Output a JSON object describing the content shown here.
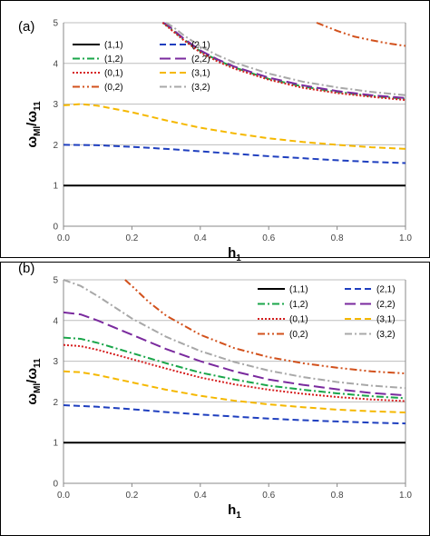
{
  "chart_data": [
    {
      "type": "line",
      "panel_label": "(a)",
      "xlabel": "h",
      "xlabel_sub": "1",
      "ylabel": "ω",
      "ylabel_sub1": "Ml",
      "ylabel_mid": "/ω",
      "ylabel_sub2": "11",
      "xlim": [
        0,
        1
      ],
      "ylim": [
        0,
        5
      ],
      "xticks": [
        "0.0",
        "0.2",
        "0.4",
        "0.6",
        "0.8",
        "1.0"
      ],
      "yticks": [
        "0",
        "1",
        "2",
        "3",
        "4",
        "5"
      ],
      "grid": true,
      "legend_position": "top-left",
      "series": [
        {
          "name": "(1,1)",
          "color": "#000000",
          "dash": "solid",
          "x": [
            0,
            0.2,
            0.4,
            0.6,
            0.8,
            1.0
          ],
          "y": [
            1.0,
            1.0,
            1.0,
            1.0,
            1.0,
            1.0
          ]
        },
        {
          "name": "(2,1)",
          "color": "#1f3fbf",
          "dash": "dash",
          "x": [
            0,
            0.1,
            0.2,
            0.3,
            0.4,
            0.5,
            0.6,
            0.7,
            0.8,
            0.9,
            1.0
          ],
          "y": [
            2.0,
            1.99,
            1.95,
            1.9,
            1.84,
            1.78,
            1.72,
            1.67,
            1.62,
            1.58,
            1.55
          ]
        },
        {
          "name": "(1,2)",
          "color": "#1aa64a",
          "dash": "dashdot",
          "x": [
            0.29,
            0.3,
            0.35,
            0.4,
            0.45,
            0.5,
            0.6,
            0.7,
            0.8,
            0.9,
            1.0
          ],
          "y": [
            5.0,
            4.95,
            4.6,
            4.3,
            4.08,
            3.9,
            3.62,
            3.43,
            3.3,
            3.2,
            3.13
          ]
        },
        {
          "name": "(2,2)",
          "color": "#7a2a9e",
          "dash": "longdash",
          "x": [
            0.29,
            0.3,
            0.35,
            0.4,
            0.45,
            0.5,
            0.6,
            0.7,
            0.8,
            0.9,
            1.0
          ],
          "y": [
            5.0,
            4.97,
            4.62,
            4.32,
            4.1,
            3.92,
            3.65,
            3.46,
            3.32,
            3.22,
            3.15
          ]
        },
        {
          "name": "(0,1)",
          "color": "#d62020",
          "dash": "dot",
          "x": [
            0.29,
            0.3,
            0.35,
            0.4,
            0.45,
            0.5,
            0.6,
            0.7,
            0.8,
            0.9,
            1.0
          ],
          "y": [
            5.0,
            4.93,
            4.58,
            4.27,
            4.05,
            3.87,
            3.6,
            3.4,
            3.27,
            3.18,
            3.1
          ]
        },
        {
          "name": "(3,1)",
          "color": "#f5b800",
          "dash": "dash",
          "x": [
            0,
            0.05,
            0.1,
            0.2,
            0.3,
            0.4,
            0.5,
            0.6,
            0.7,
            0.8,
            0.9,
            1.0
          ],
          "y": [
            2.97,
            3.0,
            2.96,
            2.8,
            2.6,
            2.42,
            2.28,
            2.16,
            2.07,
            2.0,
            1.94,
            1.9
          ]
        },
        {
          "name": "(0,2)",
          "color": "#d2511c",
          "dash": "dashdotdot",
          "x": [
            0.74,
            0.8,
            0.85,
            0.9,
            0.95,
            1.0
          ],
          "y": [
            5.0,
            4.8,
            4.66,
            4.57,
            4.49,
            4.43
          ]
        },
        {
          "name": "(3,2)",
          "color": "#a8a8a8",
          "dash": "dashdot",
          "x": [
            0.3,
            0.32,
            0.35,
            0.4,
            0.45,
            0.5,
            0.6,
            0.7,
            0.8,
            0.9,
            1.0
          ],
          "y": [
            5.0,
            4.9,
            4.7,
            4.42,
            4.2,
            4.02,
            3.75,
            3.55,
            3.41,
            3.3,
            3.22
          ]
        }
      ]
    },
    {
      "type": "line",
      "panel_label": "(b)",
      "xlabel": "h",
      "xlabel_sub": "1",
      "ylabel": "ω",
      "ylabel_sub1": "Ml",
      "ylabel_mid": "/ω",
      "ylabel_sub2": "11",
      "xlim": [
        0,
        1
      ],
      "ylim": [
        0,
        5
      ],
      "xticks": [
        "0.0",
        "0.2",
        "0.4",
        "0.6",
        "0.8",
        "1.0"
      ],
      "yticks": [
        "0",
        "1",
        "2",
        "3",
        "4",
        "5"
      ],
      "grid": true,
      "legend_position": "top-right",
      "series": [
        {
          "name": "(1,1)",
          "color": "#000000",
          "dash": "solid",
          "x": [
            0,
            0.2,
            0.4,
            0.6,
            0.8,
            1.0
          ],
          "y": [
            1.0,
            1.0,
            1.0,
            1.0,
            1.0,
            1.0
          ]
        },
        {
          "name": "(2,1)",
          "color": "#1f3fbf",
          "dash": "dash",
          "x": [
            0,
            0.1,
            0.2,
            0.3,
            0.4,
            0.5,
            0.6,
            0.7,
            0.8,
            0.9,
            1.0
          ],
          "y": [
            1.92,
            1.88,
            1.82,
            1.75,
            1.69,
            1.64,
            1.59,
            1.55,
            1.52,
            1.49,
            1.47
          ]
        },
        {
          "name": "(1,2)",
          "color": "#1aa64a",
          "dash": "dashdot",
          "x": [
            0,
            0.05,
            0.1,
            0.2,
            0.3,
            0.4,
            0.5,
            0.6,
            0.7,
            0.8,
            0.9,
            1.0
          ],
          "y": [
            3.58,
            3.55,
            3.45,
            3.2,
            2.95,
            2.72,
            2.55,
            2.4,
            2.3,
            2.21,
            2.14,
            2.09
          ]
        },
        {
          "name": "(2,2)",
          "color": "#7a2a9e",
          "dash": "longdash",
          "x": [
            0,
            0.05,
            0.1,
            0.2,
            0.3,
            0.4,
            0.5,
            0.6,
            0.7,
            0.8,
            0.9,
            1.0
          ],
          "y": [
            4.2,
            4.15,
            4.0,
            3.65,
            3.3,
            3.0,
            2.75,
            2.55,
            2.42,
            2.31,
            2.22,
            2.16
          ]
        },
        {
          "name": "(0,1)",
          "color": "#d62020",
          "dash": "dot",
          "x": [
            0,
            0.05,
            0.1,
            0.2,
            0.3,
            0.4,
            0.5,
            0.6,
            0.7,
            0.8,
            0.9,
            1.0
          ],
          "y": [
            3.4,
            3.37,
            3.28,
            3.05,
            2.82,
            2.6,
            2.43,
            2.3,
            2.2,
            2.12,
            2.06,
            2.02
          ]
        },
        {
          "name": "(3,1)",
          "color": "#f5b800",
          "dash": "dash",
          "x": [
            0,
            0.05,
            0.1,
            0.2,
            0.3,
            0.4,
            0.5,
            0.6,
            0.7,
            0.8,
            0.9,
            1.0
          ],
          "y": [
            2.75,
            2.73,
            2.66,
            2.48,
            2.3,
            2.15,
            2.03,
            1.94,
            1.87,
            1.81,
            1.77,
            1.74
          ]
        },
        {
          "name": "(0,2)",
          "color": "#d2511c",
          "dash": "dashdotdot",
          "x": [
            0.18,
            0.2,
            0.25,
            0.3,
            0.4,
            0.5,
            0.6,
            0.7,
            0.8,
            0.9,
            1.0
          ],
          "y": [
            5.0,
            4.85,
            4.45,
            4.12,
            3.65,
            3.32,
            3.1,
            2.95,
            2.84,
            2.75,
            2.7
          ]
        },
        {
          "name": "(3,2)",
          "color": "#a8a8a8",
          "dash": "dashdot",
          "x": [
            0,
            0.05,
            0.1,
            0.2,
            0.3,
            0.4,
            0.5,
            0.6,
            0.7,
            0.8,
            0.9,
            1.0
          ],
          "y": [
            5.0,
            4.85,
            4.6,
            4.05,
            3.6,
            3.25,
            2.98,
            2.77,
            2.61,
            2.49,
            2.4,
            2.34
          ]
        }
      ]
    }
  ]
}
